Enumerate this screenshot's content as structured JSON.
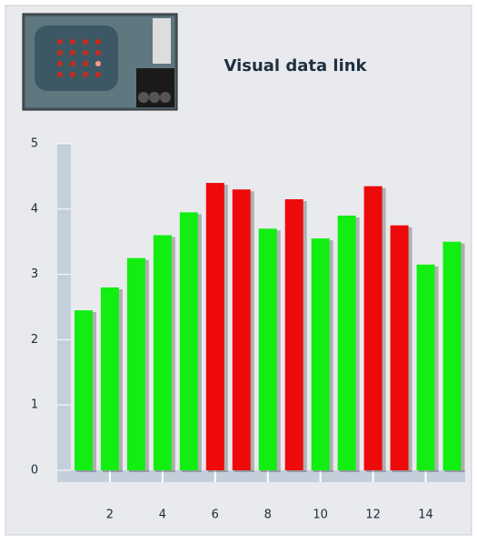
{
  "chart_data": {
    "type": "bar",
    "title": "Visual data link",
    "x": [
      1,
      2,
      3,
      4,
      5,
      6,
      7,
      8,
      9,
      10,
      11,
      12,
      13,
      14,
      15
    ],
    "values": [
      2.45,
      2.8,
      3.25,
      3.6,
      3.95,
      4.4,
      4.3,
      3.7,
      4.15,
      3.55,
      3.9,
      4.35,
      3.75,
      3.15,
      3.5
    ],
    "colors": [
      "#12ee12",
      "#12ee12",
      "#12ee12",
      "#12ee12",
      "#12ee12",
      "#ee0a0a",
      "#ee0a0a",
      "#12ee12",
      "#ee0a0a",
      "#12ee12",
      "#12ee12",
      "#ee0a0a",
      "#ee0a0a",
      "#12ee12",
      "#12ee12"
    ],
    "xlim": [
      0,
      15.5
    ],
    "xticks": [
      2,
      4,
      6,
      8,
      10,
      12,
      14
    ],
    "ylim": [
      0,
      5
    ],
    "yticks": [
      0,
      1,
      2,
      3,
      4,
      5
    ]
  }
}
